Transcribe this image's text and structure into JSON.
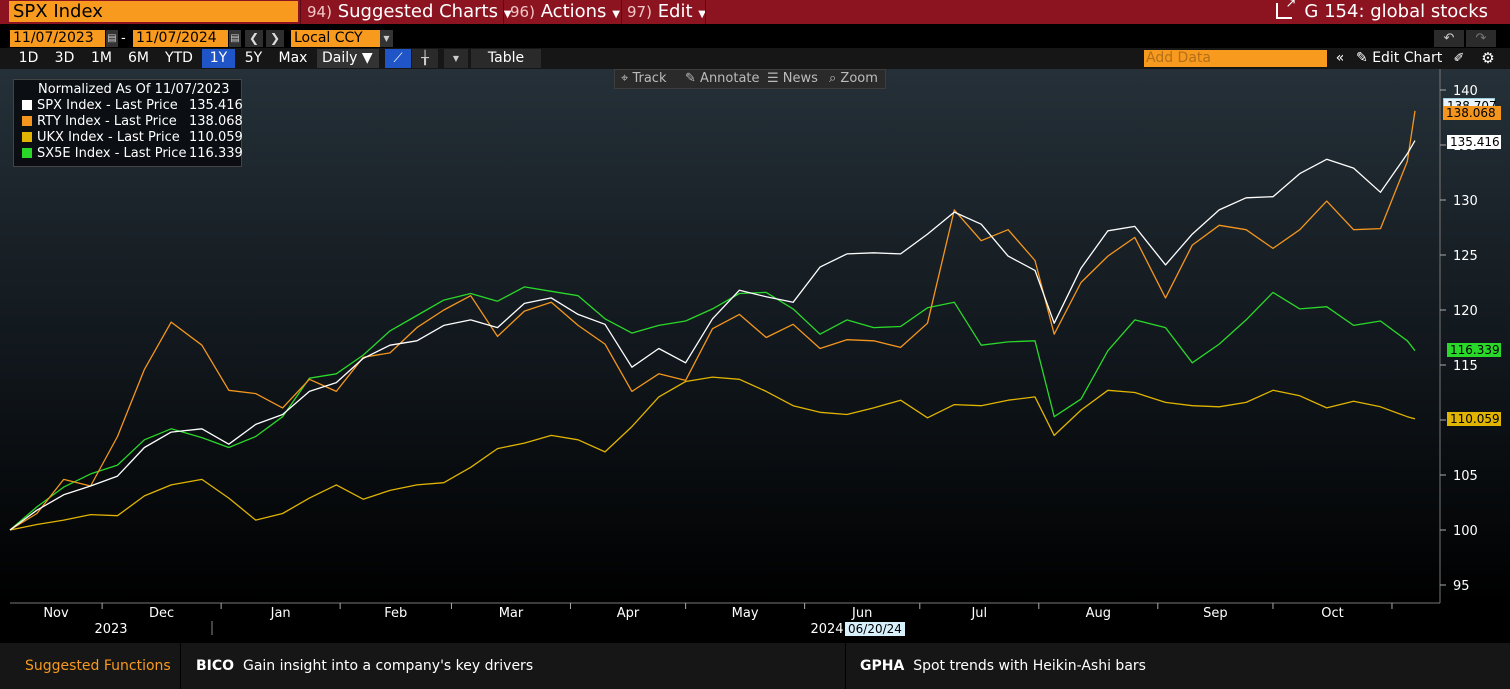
{
  "topbar": {
    "ticker": "SPX Index",
    "menus": [
      {
        "num": "94)",
        "label": "Suggested Charts"
      },
      {
        "num": "96)",
        "label": "Actions"
      },
      {
        "num": "97)",
        "label": "Edit"
      }
    ],
    "title": "G 154: global stocks"
  },
  "dates": {
    "start": "11/07/2023",
    "dash": "-",
    "end": "11/07/2024",
    "currency": "Local CCY"
  },
  "periods": [
    "1D",
    "3D",
    "1M",
    "6M",
    "YTD",
    "1Y",
    "5Y",
    "Max"
  ],
  "active_period": "1Y",
  "frequency": "Daily ▼",
  "table_label": "Table",
  "add_data_placeholder": "Add Data",
  "edit_chart_label": "Edit Chart",
  "tools": [
    "Track",
    "Annotate",
    "News",
    "Zoom"
  ],
  "legend": {
    "heading": "Normalized As Of 11/07/2023",
    "rows": [
      "SPX Index - Last Price",
      "RTY Index - Last Price",
      "UKX Index - Last Price",
      "SX5E Index - Last Price"
    ],
    "values": [
      "135.416",
      "138.068",
      "110.059",
      "116.339"
    ]
  },
  "right_labels": [
    "138.707",
    "138.068",
    "135.416",
    "116.339",
    "110.059"
  ],
  "crosshair_date": "06/20/24",
  "colors": {
    "SPX": "#ffffff",
    "RTY": "#f4961e",
    "UKX": "#e0b400",
    "SX5E": "#2ad82a",
    "brand": "#8c1420",
    "accent": "#f79a1e"
  },
  "footer": {
    "suggested": "Suggested Functions",
    "items": [
      {
        "code": "BICO",
        "text": "Gain insight into a company's key drivers"
      },
      {
        "code": "GPHA",
        "text": "Spot trends with Heikin-Ashi bars"
      }
    ]
  },
  "chart_data": {
    "type": "line",
    "title": "",
    "xlabel": "",
    "ylabel": "",
    "ylim": [
      94,
      141
    ],
    "y_ticks": [
      95,
      100,
      105,
      110,
      115,
      120,
      125,
      130,
      135,
      140
    ],
    "x_ticks": [
      "Nov",
      "Dec",
      "Jan",
      "Feb",
      "Mar",
      "Apr",
      "May",
      "Jun",
      "Jul",
      "Aug",
      "Sep",
      "Oct"
    ],
    "x_year_labels": [
      "2023",
      "2024"
    ],
    "x": [
      "2023-11-07",
      "2023-11-14",
      "2023-11-21",
      "2023-11-28",
      "2023-12-05",
      "2023-12-12",
      "2023-12-19",
      "2023-12-27",
      "2024-01-03",
      "2024-01-10",
      "2024-01-17",
      "2024-01-24",
      "2024-01-31",
      "2024-02-07",
      "2024-02-14",
      "2024-02-21",
      "2024-02-28",
      "2024-03-06",
      "2024-03-13",
      "2024-03-20",
      "2024-03-27",
      "2024-04-03",
      "2024-04-10",
      "2024-04-17",
      "2024-04-24",
      "2024-05-01",
      "2024-05-08",
      "2024-05-15",
      "2024-05-22",
      "2024-05-29",
      "2024-06-05",
      "2024-06-12",
      "2024-06-19",
      "2024-06-26",
      "2024-07-03",
      "2024-07-10",
      "2024-07-17",
      "2024-07-24",
      "2024-07-31",
      "2024-08-05",
      "2024-08-12",
      "2024-08-19",
      "2024-08-26",
      "2024-09-03",
      "2024-09-10",
      "2024-09-17",
      "2024-09-24",
      "2024-10-01",
      "2024-10-08",
      "2024-10-15",
      "2024-10-22",
      "2024-10-29",
      "2024-11-05",
      "2024-11-07"
    ],
    "series": [
      {
        "name": "SPX Index - Last Price",
        "color": "#ffffff",
        "values": [
          100,
          101.8,
          103.2,
          104,
          104.9,
          107.5,
          108.9,
          109.2,
          107.8,
          109.6,
          110.5,
          112.6,
          113.4,
          115.6,
          116.8,
          117.2,
          118.6,
          119.1,
          118.4,
          120.6,
          121.1,
          119.6,
          118.7,
          114.8,
          116.5,
          115.2,
          119.2,
          121.8,
          121.2,
          120.7,
          123.9,
          125.1,
          125.2,
          125.1,
          126.9,
          128.9,
          127.8,
          124.9,
          123.6,
          118.8,
          123.8,
          127.2,
          127.6,
          124.1,
          126.9,
          129.1,
          130.2,
          130.3,
          132.4,
          133.7,
          132.9,
          130.7,
          134.2,
          135.4
        ]
      },
      {
        "name": "RTY Index - Last Price",
        "color": "#f4961e",
        "values": [
          100,
          101.5,
          104.6,
          104,
          108.5,
          114.6,
          118.9,
          116.8,
          112.7,
          112.4,
          111.1,
          113.7,
          112.6,
          115.7,
          116.1,
          118.4,
          120,
          121.3,
          117.6,
          119.9,
          120.7,
          118.6,
          116.9,
          112.6,
          114.2,
          113.6,
          118.3,
          119.6,
          117.5,
          118.7,
          116.5,
          117.3,
          117.2,
          116.6,
          118.8,
          129.1,
          126.3,
          127.3,
          124.5,
          117.8,
          122.5,
          124.9,
          126.6,
          121.1,
          125.9,
          127.7,
          127.3,
          125.6,
          127.3,
          129.9,
          127.3,
          127.4,
          133.5,
          138.1
        ]
      },
      {
        "name": "UKX Index - Last Price",
        "color": "#e0b400",
        "values": [
          100,
          100.5,
          100.9,
          101.4,
          101.3,
          103.1,
          104.1,
          104.6,
          102.9,
          100.9,
          101.5,
          102.9,
          104.1,
          102.8,
          103.6,
          104.1,
          104.3,
          105.7,
          107.4,
          107.9,
          108.6,
          108.2,
          107.1,
          109.4,
          112.1,
          113.5,
          113.9,
          113.7,
          112.6,
          111.3,
          110.7,
          110.5,
          111.1,
          111.8,
          110.2,
          111.4,
          111.3,
          111.8,
          112.1,
          108.6,
          110.9,
          112.7,
          112.5,
          111.6,
          111.3,
          111.2,
          111.6,
          112.7,
          112.2,
          111.1,
          111.7,
          111.2,
          110.3,
          110.1
        ]
      },
      {
        "name": "SX5E Index - Last Price",
        "color": "#2ad82a",
        "values": [
          100,
          102.1,
          103.9,
          105.1,
          105.9,
          108.2,
          109.2,
          108.4,
          107.5,
          108.5,
          110.3,
          113.8,
          114.2,
          115.9,
          118.1,
          119.5,
          120.9,
          121.5,
          120.8,
          122.1,
          121.7,
          121.3,
          119.2,
          117.9,
          118.6,
          119,
          120.1,
          121.5,
          121.6,
          120.1,
          117.8,
          119.1,
          118.4,
          118.5,
          120.2,
          120.7,
          116.8,
          117.1,
          117.2,
          110.3,
          111.9,
          116.3,
          119.1,
          118.4,
          115.2,
          116.9,
          119.1,
          121.6,
          120.1,
          120.3,
          118.6,
          119,
          117.2,
          116.3
        ]
      }
    ]
  }
}
